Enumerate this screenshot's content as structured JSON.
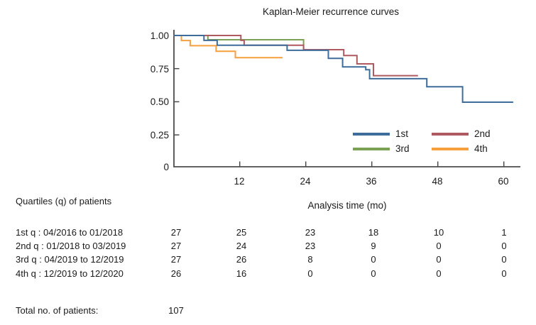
{
  "title": "Kaplan-Meier recurrence curves",
  "chart_data": {
    "type": "line",
    "subtype": "kaplan-meier-step-curves",
    "title": "Kaplan-Meier recurrence curves",
    "xlabel": "Analysis time (mo)",
    "ylabel": "",
    "xlim": [
      0,
      63
    ],
    "ylim": [
      0,
      1.0
    ],
    "xticks": [
      12,
      24,
      36,
      48,
      60
    ],
    "xtick_labels": [
      "12",
      "24",
      "36",
      "48",
      "60"
    ],
    "ytick_values": [
      0,
      0.25,
      0.5,
      0.75,
      1.0
    ],
    "ytick_labels": [
      "0",
      "0.25",
      "0.50",
      "0.75",
      "1.00"
    ],
    "grid": false,
    "legend_position": "inside-bottom-right",
    "series": [
      {
        "name": "3rd",
        "color": "#7AA154",
        "steps": [
          [
            0,
            1.0
          ],
          [
            6.2,
            1.0
          ],
          [
            6.2,
            0.968
          ],
          [
            23.6,
            0.968
          ],
          [
            23.6,
            0.893
          ],
          [
            28.0,
            0.893
          ]
        ]
      },
      {
        "name": "4th",
        "color": "#F5A03C",
        "steps": [
          [
            0,
            1.0
          ],
          [
            1.4,
            1.0
          ],
          [
            1.4,
            0.962
          ],
          [
            3.0,
            0.962
          ],
          [
            3.0,
            0.923
          ],
          [
            7.7,
            0.923
          ],
          [
            7.7,
            0.881
          ],
          [
            11.2,
            0.881
          ],
          [
            11.2,
            0.833
          ],
          [
            19.8,
            0.833
          ]
        ]
      },
      {
        "name": "2nd",
        "color": "#AE5A60",
        "steps": [
          [
            0,
            1.0
          ],
          [
            12.2,
            1.0
          ],
          [
            12.2,
            0.963
          ],
          [
            12.8,
            0.963
          ],
          [
            12.8,
            0.926
          ],
          [
            23.6,
            0.926
          ],
          [
            23.6,
            0.893
          ],
          [
            30.9,
            0.893
          ],
          [
            30.9,
            0.849
          ],
          [
            33.3,
            0.849
          ],
          [
            33.3,
            0.786
          ],
          [
            36.3,
            0.786
          ],
          [
            36.3,
            0.697
          ],
          [
            44.4,
            0.697
          ]
        ]
      },
      {
        "name": "1st",
        "color": "#3E6D9C",
        "steps": [
          [
            0,
            1.0
          ],
          [
            5.5,
            1.0
          ],
          [
            5.5,
            0.963
          ],
          [
            7.9,
            0.963
          ],
          [
            7.9,
            0.926
          ],
          [
            20.6,
            0.926
          ],
          [
            20.6,
            0.888
          ],
          [
            28.1,
            0.888
          ],
          [
            28.1,
            0.827
          ],
          [
            30.7,
            0.827
          ],
          [
            30.7,
            0.763
          ],
          [
            34.9,
            0.763
          ],
          [
            34.9,
            0.742
          ],
          [
            35.6,
            0.742
          ],
          [
            35.6,
            0.674
          ],
          [
            46.0,
            0.674
          ],
          [
            46.0,
            0.613
          ],
          [
            52.5,
            0.613
          ],
          [
            52.5,
            0.497
          ],
          [
            61.7,
            0.497
          ]
        ]
      }
    ]
  },
  "legend": {
    "items": [
      {
        "label": "1st",
        "color": "#3E6D9C"
      },
      {
        "label": "2nd",
        "color": "#AE5A60"
      },
      {
        "label": "3rd",
        "color": "#7AA154"
      },
      {
        "label": "4th",
        "color": "#F5A03C"
      }
    ]
  },
  "risk_table": {
    "header": "Quartiles (q) of patients",
    "rows": [
      {
        "label": "1st q : 04/2016 to 01/2018",
        "counts": [
          "27",
          "25",
          "23",
          "18",
          "10",
          "1"
        ]
      },
      {
        "label": "2nd q : 01/2018 to 03/2019",
        "counts": [
          "27",
          "24",
          "23",
          "9",
          "0",
          "0"
        ]
      },
      {
        "label": "3rd q : 04/2019 to 12/2019",
        "counts": [
          "27",
          "26",
          "8",
          "0",
          "0",
          "0"
        ]
      },
      {
        "label": "4th q : 12/2019 to 12/2020",
        "counts": [
          "26",
          "16",
          "0",
          "0",
          "0",
          "0"
        ]
      }
    ],
    "total_label": "Total no. of patients:",
    "total_value": "107"
  },
  "colors": {
    "axis": "#4D4D4D",
    "text": "#1A1A1A",
    "background": "#FFFFFF"
  }
}
